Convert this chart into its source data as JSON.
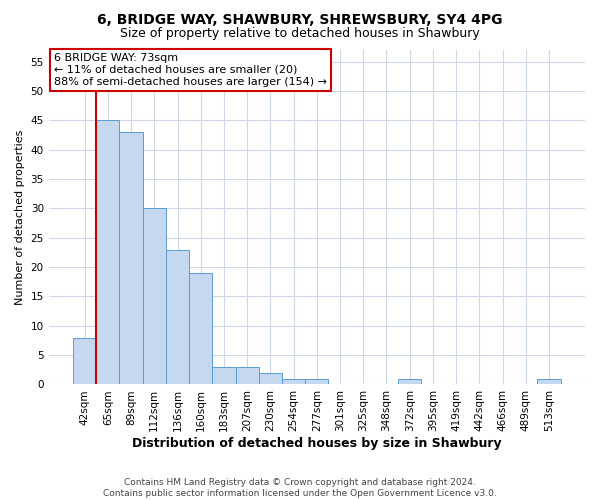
{
  "title1": "6, BRIDGE WAY, SHAWBURY, SHREWSBURY, SY4 4PG",
  "title2": "Size of property relative to detached houses in Shawbury",
  "xlabel": "Distribution of detached houses by size in Shawbury",
  "ylabel": "Number of detached properties",
  "bin_labels": [
    "42sqm",
    "65sqm",
    "89sqm",
    "112sqm",
    "136sqm",
    "160sqm",
    "183sqm",
    "207sqm",
    "230sqm",
    "254sqm",
    "277sqm",
    "301sqm",
    "325sqm",
    "348sqm",
    "372sqm",
    "395sqm",
    "419sqm",
    "442sqm",
    "466sqm",
    "489sqm",
    "513sqm"
  ],
  "bar_values": [
    8,
    45,
    43,
    30,
    23,
    19,
    3,
    3,
    2,
    1,
    1,
    0,
    0,
    0,
    1,
    0,
    0,
    0,
    0,
    0,
    1
  ],
  "bar_color": "#c5d8f0",
  "bar_edgecolor": "#5b9bd5",
  "vline_color": "#cc0000",
  "annotation_text": "6 BRIDGE WAY: 73sqm\n← 11% of detached houses are smaller (20)\n88% of semi-detached houses are larger (154) →",
  "annotation_box_color": "#ffffff",
  "annotation_box_edgecolor": "#cc0000",
  "ylim": [
    0,
    57
  ],
  "yticks": [
    0,
    5,
    10,
    15,
    20,
    25,
    30,
    35,
    40,
    45,
    50,
    55
  ],
  "grid_color": "#d0d8e8",
  "background_color": "#ffffff",
  "footer_text": "Contains HM Land Registry data © Crown copyright and database right 2024.\nContains public sector information licensed under the Open Government Licence v3.0.",
  "title1_fontsize": 10,
  "title2_fontsize": 9,
  "xlabel_fontsize": 9,
  "ylabel_fontsize": 8,
  "tick_fontsize": 7.5,
  "annotation_fontsize": 8,
  "footer_fontsize": 6.5
}
